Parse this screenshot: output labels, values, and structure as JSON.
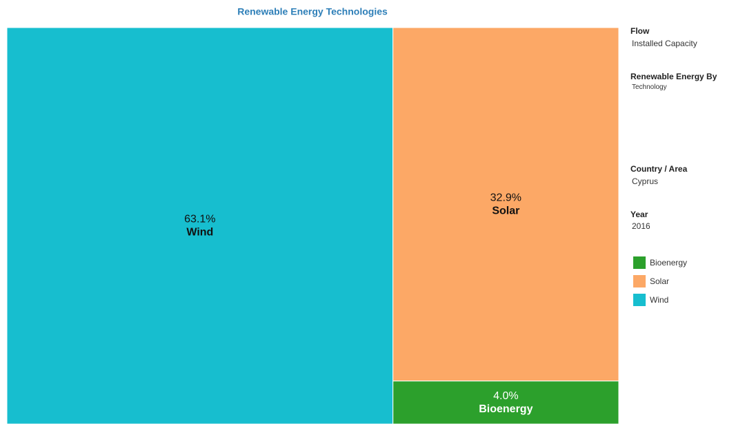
{
  "chart_data": {
    "type": "treemap",
    "title": "Renewable Energy Technologies",
    "categories": [
      "Wind",
      "Solar",
      "Bioenergy"
    ],
    "values": [
      63.1,
      32.9,
      4.0
    ],
    "value_labels": [
      "63.1%",
      "32.9%",
      "4.0%"
    ],
    "colors": [
      "#17becf",
      "#fca866",
      "#2ca02c"
    ],
    "filters": [
      {
        "name": "Flow",
        "value": "Installed Capacity"
      },
      {
        "name": "Renewable Energy By",
        "value": "Technology"
      },
      {
        "name": "Country / Area",
        "value": "Cyprus"
      },
      {
        "name": "Year",
        "value": "2016"
      }
    ]
  }
}
